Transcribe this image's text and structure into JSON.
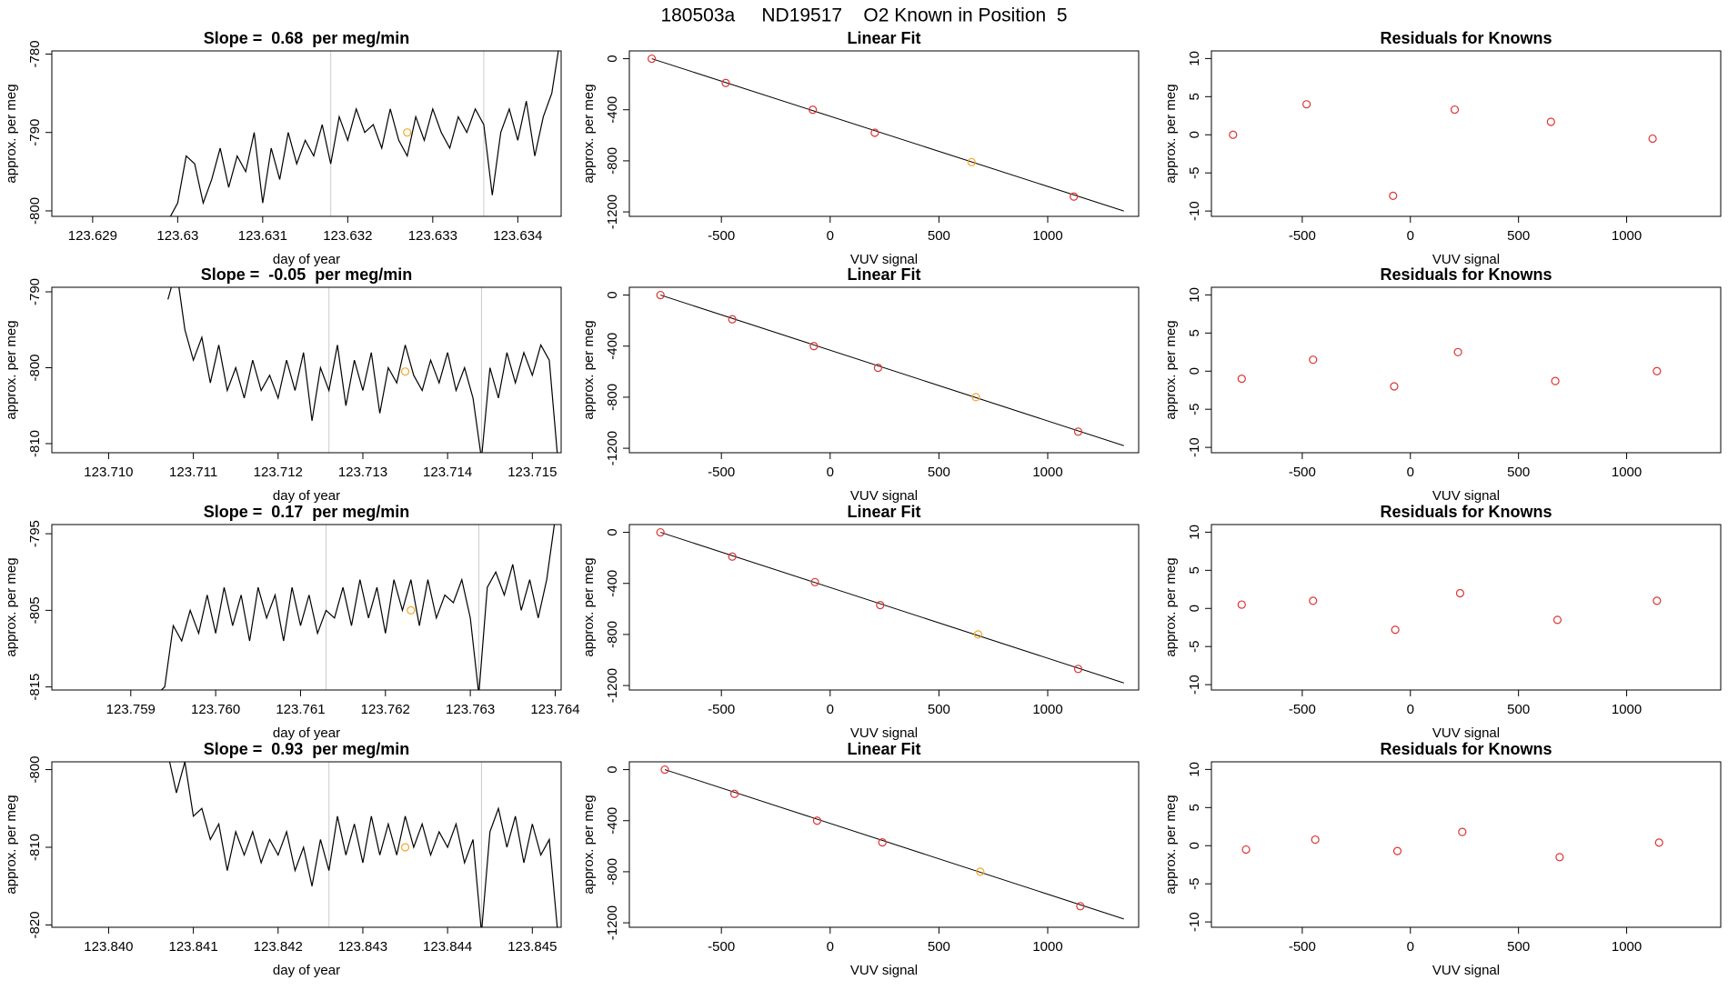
{
  "title": "180503a     ND19517    O2 Known in Position  5",
  "chart_data": [
    {
      "type": "line",
      "title": "Slope =  0.68  per meg/min",
      "xlabel": "day of year",
      "ylabel": "approx. per meg",
      "x": [
        123.6299,
        123.63,
        123.6301,
        123.6302,
        123.6303,
        123.6304,
        123.6305,
        123.6306,
        123.6307,
        123.6308,
        123.6309,
        123.631,
        123.6311,
        123.6312,
        123.6313,
        123.6314,
        123.6315,
        123.6316,
        123.6317,
        123.6318,
        123.6319,
        123.632,
        123.6321,
        123.6322,
        123.6323,
        123.6324,
        123.6325,
        123.6326,
        123.6327,
        123.6328,
        123.6329,
        123.633,
        123.6331,
        123.6332,
        123.6333,
        123.6334,
        123.6335,
        123.6336,
        123.6337,
        123.6338,
        123.6339,
        123.634,
        123.6341,
        123.6342,
        123.6343,
        123.6344,
        123.6345
      ],
      "series": [
        {
          "color": "#000000",
          "values": [
            -801,
            -799,
            -793,
            -794,
            -799,
            -796,
            -792,
            -797,
            -793,
            -795,
            -790,
            -799,
            -792,
            -796,
            -790,
            -794,
            -791,
            -793,
            -789,
            -794,
            -788,
            -791,
            -787,
            -790,
            -789,
            -792,
            -787,
            -791,
            -793,
            -788,
            -791,
            -787,
            -790,
            -792,
            -788,
            -790,
            -787,
            -789,
            -798,
            -790,
            -787,
            -791,
            -786,
            -793,
            -788,
            -785,
            -778
          ]
        }
      ],
      "xlim": [
        123.62852,
        123.63451
      ],
      "ylim": [
        -800.7,
        -779.6
      ],
      "xticks": [
        123.629,
        123.63,
        123.631,
        123.632,
        123.633,
        123.634
      ],
      "yticks": [
        -800,
        -790,
        -780
      ],
      "vlines": [
        123.6318,
        123.6336
      ],
      "vline_color": "#cccccc",
      "highlight": {
        "x": 123.6327,
        "y": -790,
        "color": "#f5a623"
      }
    },
    {
      "type": "scatter",
      "title": "Linear Fit",
      "xlabel": "VUV signal",
      "ylabel": "approx. per meg",
      "x": [
        -820,
        -480,
        -80,
        205,
        650,
        1120
      ],
      "values": [
        0,
        -190,
        -400,
        -580,
        -810,
        -1080
      ],
      "colors": [
        "#dd3333",
        "#dd3333",
        "#dd3333",
        "#dd3333",
        "#f5a623",
        "#dd3333"
      ],
      "fit": {
        "x": [
          -820,
          1350
        ],
        "y": [
          0,
          -1193
        ],
        "color": "#000000"
      },
      "xlim": [
        -923,
        1418
      ],
      "ylim": [
        -1235,
        61
      ],
      "xticks": [
        -500,
        0,
        500,
        1000
      ],
      "yticks": [
        -1200,
        -800,
        -400,
        0
      ]
    },
    {
      "type": "scatter",
      "title": "Residuals for Knowns",
      "xlabel": "VUV signal",
      "ylabel": "approx. per meg",
      "x": [
        -820,
        -480,
        -80,
        205,
        650,
        1120
      ],
      "values": [
        0,
        4,
        -8,
        3.3,
        1.7,
        -0.5
      ],
      "colors": [
        "#dd3333",
        "#dd3333",
        "#dd3333",
        "#dd3333",
        "#dd3333",
        "#dd3333"
      ],
      "xlim": [
        -920,
        1435
      ],
      "ylim": [
        -10.7,
        11
      ],
      "xticks": [
        -500,
        0,
        500,
        1000
      ],
      "yticks": [
        -10,
        -5,
        0,
        5,
        10
      ]
    },
    {
      "type": "line",
      "title": "Slope =  -0.05  per meg/min",
      "xlabel": "day of year",
      "ylabel": "approx. per meg",
      "x": [
        123.7107,
        123.7108,
        123.7109,
        123.711,
        123.7111,
        123.7112,
        123.7113,
        123.7114,
        123.7115,
        123.7116,
        123.7117,
        123.7118,
        123.7119,
        123.712,
        123.7121,
        123.7122,
        123.7123,
        123.7124,
        123.7125,
        123.7126,
        123.7127,
        123.7128,
        123.7129,
        123.713,
        123.7131,
        123.7132,
        123.7133,
        123.7134,
        123.7135,
        123.7136,
        123.7137,
        123.7138,
        123.7139,
        123.714,
        123.7141,
        123.7142,
        123.7143,
        123.7144,
        123.7145,
        123.7146,
        123.7147,
        123.7148,
        123.7149,
        123.715,
        123.7151,
        123.7152,
        123.7153
      ],
      "series": [
        {
          "color": "#000000",
          "values": [
            -791,
            -787,
            -795,
            -799,
            -796,
            -802,
            -797,
            -803,
            -800,
            -804,
            -799,
            -803,
            -801,
            -804,
            -799,
            -803,
            -798,
            -807,
            -800,
            -803,
            -797,
            -805,
            -799,
            -803,
            -798,
            -806,
            -800,
            -802,
            -797,
            -801,
            -803,
            -799,
            -802,
            -798,
            -803,
            -800,
            -804,
            -812,
            -800,
            -804,
            -798,
            -802,
            -798,
            -801,
            -797,
            -799,
            -812
          ]
        }
      ],
      "xlim": [
        123.70933,
        123.71534
      ],
      "ylim": [
        -811.2,
        -789.4
      ],
      "xticks": [
        {
          "value": 123.71,
          "label": "123.710"
        },
        123.711,
        123.712,
        123.713,
        123.714,
        123.715
      ],
      "yticks": [
        -810,
        -800,
        -790
      ],
      "vlines": [
        123.7126,
        123.7144
      ],
      "vline_color": "#cccccc",
      "highlight": {
        "x": 123.7135,
        "y": -800.5,
        "color": "#f5a623"
      }
    },
    {
      "type": "scatter",
      "title": "Linear Fit",
      "xlabel": "VUV signal",
      "ylabel": "approx. per meg",
      "x": [
        -780,
        -450,
        -75,
        220,
        670,
        1140
      ],
      "values": [
        0,
        -190,
        -400,
        -570,
        -800,
        -1070
      ],
      "colors": [
        "#dd3333",
        "#dd3333",
        "#dd3333",
        "#dd3333",
        "#f5a623",
        "#dd3333"
      ],
      "fit": {
        "x": [
          -780,
          1350
        ],
        "y": [
          0,
          -1180
        ],
        "color": "#000000"
      },
      "xlim": [
        -923,
        1418
      ],
      "ylim": [
        -1235,
        61
      ],
      "xticks": [
        -500,
        0,
        500,
        1000
      ],
      "yticks": [
        -1200,
        -800,
        -400,
        0
      ]
    },
    {
      "type": "scatter",
      "title": "Residuals for Knowns",
      "xlabel": "VUV signal",
      "ylabel": "approx. per meg",
      "x": [
        -780,
        -450,
        -75,
        220,
        670,
        1140
      ],
      "values": [
        -1,
        1.5,
        -2,
        2.5,
        -1.3,
        0
      ],
      "colors": [
        "#dd3333",
        "#dd3333",
        "#dd3333",
        "#dd3333",
        "#dd3333",
        "#dd3333"
      ],
      "xlim": [
        -920,
        1435
      ],
      "ylim": [
        -10.7,
        11
      ],
      "xticks": [
        -500,
        0,
        500,
        1000
      ],
      "yticks": [
        -10,
        -5,
        0,
        5,
        10
      ]
    },
    {
      "type": "line",
      "title": "Slope =  0.17  per meg/min",
      "xlabel": "day of year",
      "ylabel": "approx. per meg",
      "x": [
        123.7593,
        123.7594,
        123.7595,
        123.7596,
        123.7597,
        123.7598,
        123.7599,
        123.76,
        123.7601,
        123.7602,
        123.7603,
        123.7604,
        123.7605,
        123.7606,
        123.7607,
        123.7608,
        123.7609,
        123.761,
        123.7611,
        123.7612,
        123.7613,
        123.7614,
        123.7615,
        123.7616,
        123.7617,
        123.7618,
        123.7619,
        123.762,
        123.7621,
        123.7622,
        123.7623,
        123.7624,
        123.7625,
        123.7626,
        123.7627,
        123.7628,
        123.7629,
        123.763,
        123.7631,
        123.7632,
        123.7633,
        123.7634,
        123.7635,
        123.7636,
        123.7637,
        123.7638,
        123.7639,
        123.764
      ],
      "series": [
        {
          "color": "#000000",
          "values": [
            -816,
            -815,
            -807,
            -809,
            -805,
            -808,
            -803,
            -808,
            -802,
            -807,
            -803,
            -809,
            -802,
            -806,
            -803,
            -809,
            -802,
            -807,
            -803,
            -808,
            -805,
            -806,
            -802,
            -807,
            -801,
            -806,
            -802,
            -808,
            -801,
            -805,
            -801,
            -807,
            -801,
            -806,
            -803,
            -804,
            -801,
            -806,
            -816,
            -802,
            -800,
            -803,
            -799,
            -805,
            -801,
            -806,
            -801,
            -793
          ]
        }
      ],
      "xlim": [
        123.75807,
        123.76407
      ],
      "ylim": [
        -815.4,
        -793.8
      ],
      "xticks": [
        123.759,
        {
          "value": 123.76,
          "label": "123.760"
        },
        123.761,
        123.762,
        123.763,
        123.764
      ],
      "yticks": [
        -815,
        -805,
        -795
      ],
      "vlines": [
        123.7613,
        123.7631
      ],
      "vline_color": "#cccccc",
      "highlight": {
        "x": 123.7623,
        "y": -805,
        "color": "#f5a623"
      }
    },
    {
      "type": "scatter",
      "title": "Linear Fit",
      "xlabel": "VUV signal",
      "ylabel": "approx. per meg",
      "x": [
        -780,
        -450,
        -70,
        230,
        680,
        1140
      ],
      "values": [
        0,
        -190,
        -390,
        -570,
        -800,
        -1070
      ],
      "colors": [
        "#dd3333",
        "#dd3333",
        "#dd3333",
        "#dd3333",
        "#f5a623",
        "#dd3333"
      ],
      "fit": {
        "x": [
          -780,
          1350
        ],
        "y": [
          0,
          -1180
        ],
        "color": "#000000"
      },
      "xlim": [
        -923,
        1418
      ],
      "ylim": [
        -1235,
        61
      ],
      "xticks": [
        -500,
        0,
        500,
        1000
      ],
      "yticks": [
        -1200,
        -800,
        -400,
        0
      ]
    },
    {
      "type": "scatter",
      "title": "Residuals for Knowns",
      "xlabel": "VUV signal",
      "ylabel": "approx. per meg",
      "x": [
        -780,
        -450,
        -70,
        230,
        680,
        1140
      ],
      "values": [
        0.5,
        1,
        -2.8,
        2,
        -1.5,
        1
      ],
      "colors": [
        "#dd3333",
        "#dd3333",
        "#dd3333",
        "#dd3333",
        "#dd3333",
        "#dd3333"
      ],
      "xlim": [
        -920,
        1435
      ],
      "ylim": [
        -10.7,
        11
      ],
      "xticks": [
        -500,
        0,
        500,
        1000
      ],
      "yticks": [
        -10,
        -5,
        0,
        5,
        10
      ]
    },
    {
      "type": "line",
      "title": "Slope =  0.93  per meg/min",
      "xlabel": "day of year",
      "ylabel": "approx. per meg",
      "x": [
        123.8407,
        123.8408,
        123.8409,
        123.841,
        123.8411,
        123.8412,
        123.8413,
        123.8414,
        123.8415,
        123.8416,
        123.8417,
        123.8418,
        123.8419,
        123.842,
        123.8421,
        123.8422,
        123.8423,
        123.8424,
        123.8425,
        123.8426,
        123.8427,
        123.8428,
        123.8429,
        123.843,
        123.8431,
        123.8432,
        123.8433,
        123.8434,
        123.8435,
        123.8436,
        123.8437,
        123.8438,
        123.8439,
        123.844,
        123.8441,
        123.8442,
        123.8443,
        123.8444,
        123.8445,
        123.8446,
        123.8447,
        123.8448,
        123.8449,
        123.845,
        123.8451,
        123.8452,
        123.8453
      ],
      "series": [
        {
          "color": "#000000",
          "values": [
            -798,
            -803,
            -799,
            -806,
            -805,
            -809,
            -807,
            -813,
            -808,
            -811,
            -808,
            -812,
            -809,
            -811,
            -808,
            -813,
            -810,
            -815,
            -809,
            -813,
            -806,
            -811,
            -807,
            -812,
            -806,
            -811,
            -807,
            -811,
            -806,
            -810,
            -807,
            -811,
            -808,
            -810,
            -807,
            -812,
            -809,
            -821,
            -808,
            -805,
            -810,
            -806,
            -812,
            -807,
            -811,
            -809,
            -821
          ]
        }
      ],
      "xlim": [
        123.83933,
        123.84534
      ],
      "ylim": [
        -820.3,
        -799
      ],
      "xticks": [
        {
          "value": 123.84,
          "label": "123.840"
        },
        123.841,
        123.842,
        123.843,
        123.844,
        123.845
      ],
      "yticks": [
        -820,
        -810,
        -800
      ],
      "vlines": [
        123.8426,
        123.8444
      ],
      "vline_color": "#cccccc",
      "highlight": {
        "x": 123.8435,
        "y": -810,
        "color": "#f5a623"
      }
    },
    {
      "type": "scatter",
      "title": "Linear Fit",
      "xlabel": "VUV signal",
      "ylabel": "approx. per meg",
      "x": [
        -760,
        -440,
        -60,
        240,
        690,
        1150
      ],
      "values": [
        0,
        -190,
        -400,
        -570,
        -800,
        -1070
      ],
      "colors": [
        "#dd3333",
        "#dd3333",
        "#dd3333",
        "#dd3333",
        "#f5a623",
        "#dd3333"
      ],
      "fit": {
        "x": [
          -760,
          1350
        ],
        "y": [
          0,
          -1170
        ],
        "color": "#000000"
      },
      "xlim": [
        -923,
        1418
      ],
      "ylim": [
        -1235,
        61
      ],
      "xticks": [
        -500,
        0,
        500,
        1000
      ],
      "yticks": [
        -1200,
        -800,
        -400,
        0
      ]
    },
    {
      "type": "scatter",
      "title": "Residuals for Knowns",
      "xlabel": "VUV signal",
      "ylabel": "approx. per meg",
      "x": [
        -760,
        -440,
        -60,
        240,
        690,
        1150
      ],
      "values": [
        -0.5,
        0.8,
        -0.7,
        1.8,
        -1.5,
        0.4
      ],
      "colors": [
        "#dd3333",
        "#dd3333",
        "#dd3333",
        "#dd3333",
        "#dd3333",
        "#dd3333"
      ],
      "xlim": [
        -920,
        1435
      ],
      "ylim": [
        -10.7,
        11
      ],
      "xticks": [
        -500,
        0,
        500,
        1000
      ],
      "yticks": [
        -10,
        -5,
        0,
        5,
        10
      ]
    }
  ]
}
